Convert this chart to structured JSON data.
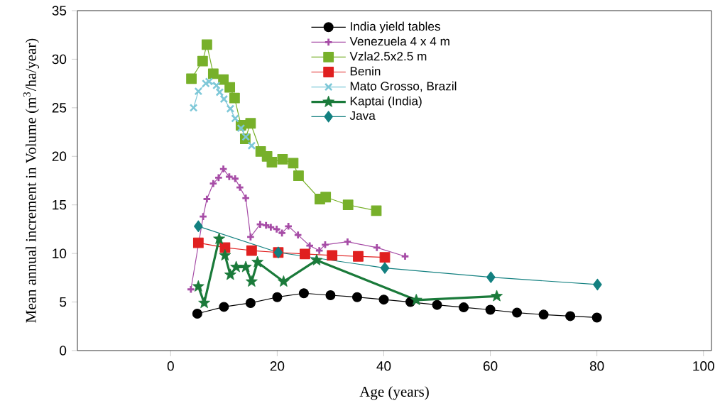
{
  "chart_data": {
    "type": "line",
    "xlabel": "Age (years)",
    "ylabel": "Mean annual increment in Volume (m$^{3}$/ha/year)",
    "xlim": [
      -17.5,
      101.5
    ],
    "ylim": [
      0,
      35
    ],
    "xticks": [
      0,
      20,
      40,
      60,
      80,
      100
    ],
    "yticks": [
      0,
      5,
      10,
      15,
      20,
      25,
      30,
      35
    ],
    "grid": false,
    "legend": "top",
    "series": [
      {
        "name": "India yield tables",
        "color": "#000000",
        "marker": "circle",
        "x": [
          5,
          10,
          15,
          20,
          25,
          30,
          35,
          40,
          45,
          50,
          55,
          60,
          65,
          70,
          75,
          80
        ],
        "values": [
          3.8,
          4.5,
          4.9,
          5.5,
          5.9,
          5.7,
          5.5,
          5.25,
          5.0,
          4.7,
          4.45,
          4.2,
          3.9,
          3.7,
          3.55,
          3.4
        ]
      },
      {
        "name": "Venezuela 4 x 4 m",
        "color": "#a64ca6",
        "marker": "cross",
        "x": [
          3.8,
          6.1,
          6.8,
          8.0,
          9.0,
          9.9,
          11.0,
          12.1,
          13.0,
          14.1,
          15.0,
          16.8,
          17.9,
          18.8,
          19.9,
          20.9,
          22.1,
          23.9,
          26.1,
          27.9,
          29.0,
          33.2,
          38.7,
          44.0
        ],
        "values": [
          6.3,
          13.8,
          15.6,
          17.2,
          17.8,
          18.7,
          17.9,
          17.7,
          16.8,
          15.7,
          11.7,
          13.0,
          12.9,
          12.7,
          12.5,
          12.1,
          12.8,
          11.9,
          10.8,
          10.3,
          10.9,
          11.2,
          10.6,
          9.7
        ]
      },
      {
        "name": "Vzla2.5x2.5 m",
        "color": "#77b02a",
        "marker": "square",
        "x": [
          3.9,
          6.0,
          6.8,
          8.0,
          9.9,
          11.1,
          12.0,
          13.2,
          14.0,
          15.0,
          16.9,
          18.1,
          19.0,
          21.0,
          23.0,
          24.0,
          28.0,
          29.1,
          33.3,
          38.6
        ],
        "values": [
          28.0,
          29.8,
          31.5,
          28.5,
          27.9,
          27.1,
          26.0,
          23.2,
          21.8,
          23.4,
          20.5,
          20.0,
          19.4,
          19.7,
          19.3,
          18.0,
          15.6,
          15.8,
          15.0,
          14.4
        ]
      },
      {
        "name": "Benin",
        "color": "#e02020",
        "marker": "square",
        "x": [
          5.2,
          10.2,
          15.2,
          20.2,
          25.2,
          30.3,
          35.2,
          40.2
        ],
        "values": [
          11.1,
          10.6,
          10.3,
          10.1,
          9.95,
          9.8,
          9.7,
          9.6
        ]
      },
      {
        "name": "Mato Grosso, Brazil",
        "color": "#7ec8d8",
        "marker": "x",
        "x": [
          4.3,
          5.2,
          6.6,
          7.2,
          8.6,
          9.2,
          10.0,
          11.2,
          12.1,
          13.2,
          14.1,
          15.2
        ],
        "values": [
          25.0,
          26.7,
          27.5,
          27.7,
          27.3,
          26.6,
          25.9,
          24.9,
          23.9,
          22.9,
          22.0,
          21.1
        ]
      },
      {
        "name": "Kaptai (India)",
        "color": "#1a7a3a",
        "marker": "star",
        "x": [
          5.2,
          6.3,
          9.1,
          10.2,
          11.2,
          12.3,
          14.1,
          15.2,
          16.3,
          21.2,
          27.4,
          46.1,
          61.2
        ],
        "values": [
          6.6,
          4.9,
          11.5,
          9.8,
          7.8,
          8.6,
          8.6,
          7.1,
          9.1,
          7.1,
          9.3,
          5.2,
          5.6
        ]
      },
      {
        "name": "Java",
        "color": "#138080",
        "marker": "diamond",
        "x": [
          5.2,
          20.2,
          40.2,
          60.1,
          80.1
        ],
        "values": [
          12.8,
          10.1,
          8.5,
          7.55,
          6.8
        ]
      }
    ]
  }
}
